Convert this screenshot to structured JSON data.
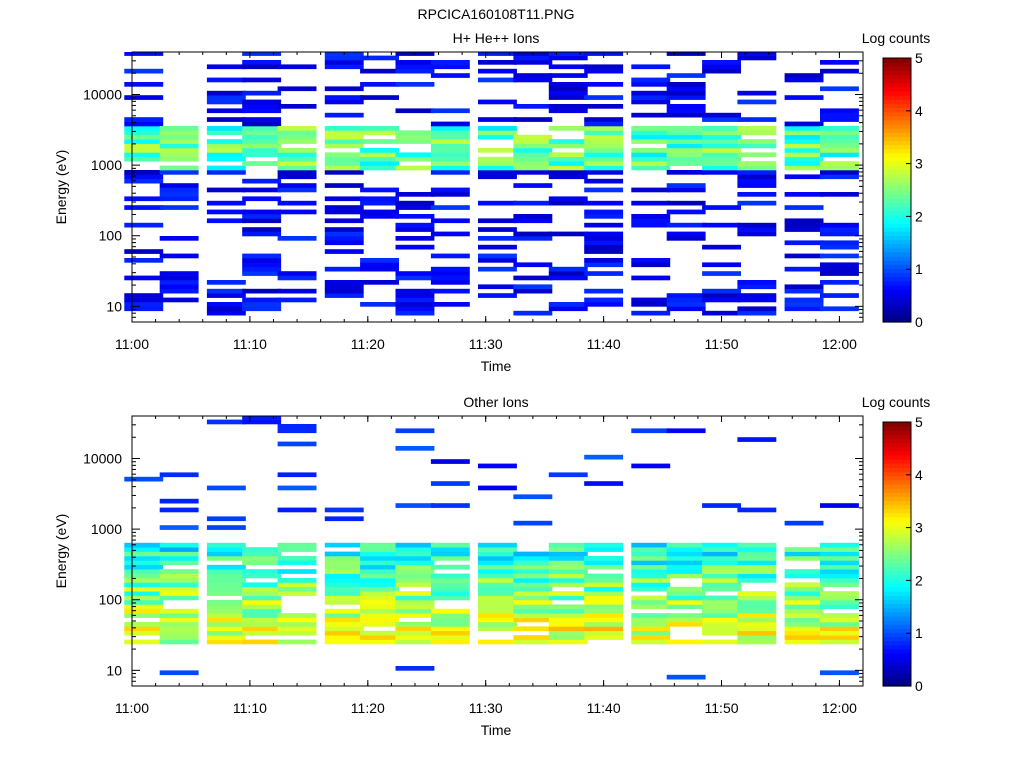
{
  "figure": {
    "title": "RPCICA160108T11.PNG"
  },
  "chart_data": [
    {
      "type": "heatmap",
      "title": "H+ He++ Ions",
      "xlabel": "Time",
      "ylabel": "Energy (eV)",
      "x_ticks": [
        "11:00",
        "11:10",
        "11:20",
        "11:30",
        "11:40",
        "11:50",
        "12:00"
      ],
      "x_range": [
        "11:00",
        "12:02"
      ],
      "y_scale": "log",
      "y_range": [
        6,
        40000
      ],
      "y_ticks": [
        {
          "value": 10,
          "label": "10"
        },
        {
          "value": 100,
          "label": "100"
        },
        {
          "value": 1000,
          "label": "1000"
        },
        {
          "value": 10000,
          "label": "10000"
        }
      ],
      "colorbar": {
        "label": "Log counts",
        "range": [
          0,
          5
        ],
        "ticks": [
          "0",
          "1",
          "2",
          "3",
          "4",
          "5"
        ]
      },
      "time_bins": [
        "11:01",
        "11:04",
        "11:08",
        "11:11",
        "11:14",
        "11:18",
        "11:21",
        "11:24",
        "11:27",
        "11:31",
        "11:34",
        "11:37",
        "11:40",
        "11:44",
        "11:47",
        "11:50",
        "11:53",
        "11:57",
        "12:00"
      ],
      "dominant_energy_band_eV": [
        1000,
        3000
      ],
      "dominant_log_counts": 2.3,
      "background_log_counts": 0.3
    },
    {
      "type": "heatmap",
      "title": "Other Ions",
      "xlabel": "Time",
      "ylabel": "Energy (eV)",
      "x_ticks": [
        "11:00",
        "11:10",
        "11:20",
        "11:30",
        "11:40",
        "11:50",
        "12:00"
      ],
      "x_range": [
        "11:00",
        "12:02"
      ],
      "y_scale": "log",
      "y_range": [
        6,
        40000
      ],
      "y_ticks": [
        {
          "value": 10,
          "label": "10"
        },
        {
          "value": 100,
          "label": "100"
        },
        {
          "value": 1000,
          "label": "1000"
        },
        {
          "value": 10000,
          "label": "10000"
        }
      ],
      "colorbar": {
        "label": "Log counts",
        "range": [
          0,
          5
        ],
        "ticks": [
          "0",
          "1",
          "2",
          "3",
          "4",
          "5"
        ]
      },
      "time_bins": [
        "11:01",
        "11:04",
        "11:08",
        "11:11",
        "11:14",
        "11:18",
        "11:21",
        "11:24",
        "11:27",
        "11:31",
        "11:34",
        "11:37",
        "11:40",
        "11:44",
        "11:47",
        "11:50",
        "11:53",
        "11:57",
        "12:00"
      ],
      "dominant_energy_band_eV": [
        25,
        600
      ],
      "peak_energy_eV": 35,
      "peak_log_counts": 3.0,
      "background_log_counts": 0.5
    }
  ]
}
